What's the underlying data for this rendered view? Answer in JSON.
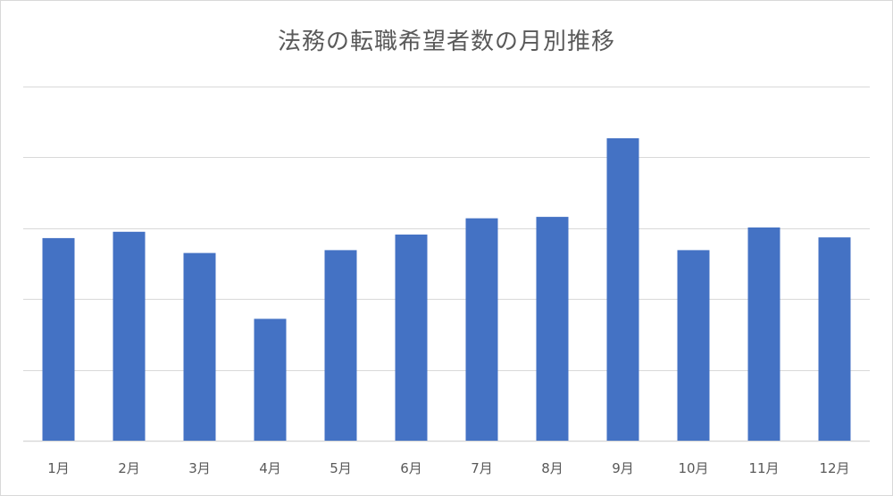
{
  "chart_data": {
    "type": "bar",
    "title": "法務の転職希望者数の月別推移",
    "xlabel": "",
    "ylabel": "",
    "categories": [
      "1月",
      "2月",
      "3月",
      "4月",
      "5月",
      "6月",
      "7月",
      "8月",
      "9月",
      "10月",
      "11月",
      "12月"
    ],
    "values": [
      2.86,
      2.95,
      2.65,
      1.72,
      2.69,
      2.91,
      3.14,
      3.16,
      4.27,
      2.69,
      3.01,
      2.87
    ],
    "ylim": [
      0,
      5
    ],
    "gridlines": [
      0,
      1,
      2,
      3,
      4,
      5
    ],
    "y_tick_labels_shown": false,
    "legend": "none",
    "colors": {
      "bar": "#4472c4",
      "grid": "#d9d9d9",
      "text": "#595959"
    }
  }
}
